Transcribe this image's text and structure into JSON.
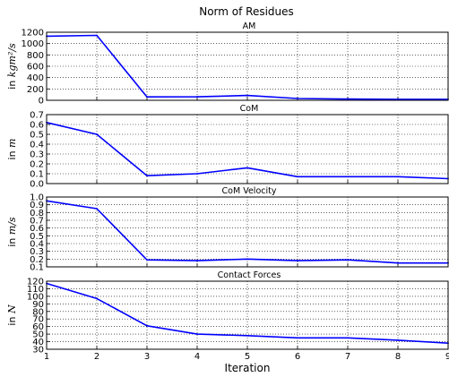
{
  "figure": {
    "title": "Norm of Residues"
  },
  "chart_data": [
    {
      "type": "line",
      "title": "AM",
      "ylabel_prefix": "in ",
      "ylabel_unit": "kgm²/s",
      "xlabel": "",
      "x": [
        1,
        2,
        3,
        4,
        5,
        6,
        7,
        8,
        9
      ],
      "series": [
        {
          "values": [
            1130,
            1145,
            60,
            62,
            85,
            32,
            22,
            18,
            18
          ],
          "color": "#0000ff"
        }
      ],
      "ylim": [
        0,
        1200
      ],
      "yticks": [
        0,
        200,
        400,
        600,
        800,
        1000,
        1200
      ],
      "xlim": [
        1,
        9
      ],
      "grid": true
    },
    {
      "type": "line",
      "title": "CoM",
      "ylabel_prefix": "in ",
      "ylabel_unit": "m",
      "xlabel": "",
      "x": [
        1,
        2,
        3,
        4,
        5,
        6,
        7,
        8,
        9
      ],
      "series": [
        {
          "values": [
            0.62,
            0.5,
            0.08,
            0.1,
            0.16,
            0.07,
            0.07,
            0.07,
            0.05
          ],
          "color": "#0000ff"
        }
      ],
      "ylim": [
        0,
        0.7
      ],
      "yticks": [
        0.0,
        0.1,
        0.2,
        0.3,
        0.4,
        0.5,
        0.6,
        0.7
      ],
      "xlim": [
        1,
        9
      ],
      "grid": true
    },
    {
      "type": "line",
      "title": "CoM Velocity",
      "ylabel_prefix": "in ",
      "ylabel_unit": "m/s",
      "xlabel": "",
      "x": [
        1,
        2,
        3,
        4,
        5,
        6,
        7,
        8,
        9
      ],
      "series": [
        {
          "values": [
            0.95,
            0.85,
            0.19,
            0.18,
            0.2,
            0.18,
            0.19,
            0.15,
            0.15
          ],
          "color": "#0000ff"
        }
      ],
      "ylim": [
        0.1,
        1.0
      ],
      "yticks": [
        0.1,
        0.2,
        0.3,
        0.4,
        0.5,
        0.6,
        0.7,
        0.8,
        0.9,
        1.0
      ],
      "xlim": [
        1,
        9
      ],
      "grid": true
    },
    {
      "type": "line",
      "title": "Contact Forces",
      "ylabel_prefix": "in ",
      "ylabel_unit": "N",
      "xlabel": "Iteration",
      "x": [
        1,
        2,
        3,
        4,
        5,
        6,
        7,
        8,
        9
      ],
      "series": [
        {
          "values": [
            117,
            97,
            61,
            50,
            48,
            45,
            45,
            42,
            38
          ],
          "color": "#0000ff"
        }
      ],
      "ylim": [
        30,
        120
      ],
      "yticks": [
        30,
        40,
        50,
        60,
        70,
        80,
        90,
        100,
        110,
        120
      ],
      "xticks": [
        1,
        2,
        3,
        4,
        5,
        6,
        7,
        8,
        9
      ],
      "xlim": [
        1,
        9
      ],
      "grid": true
    }
  ]
}
